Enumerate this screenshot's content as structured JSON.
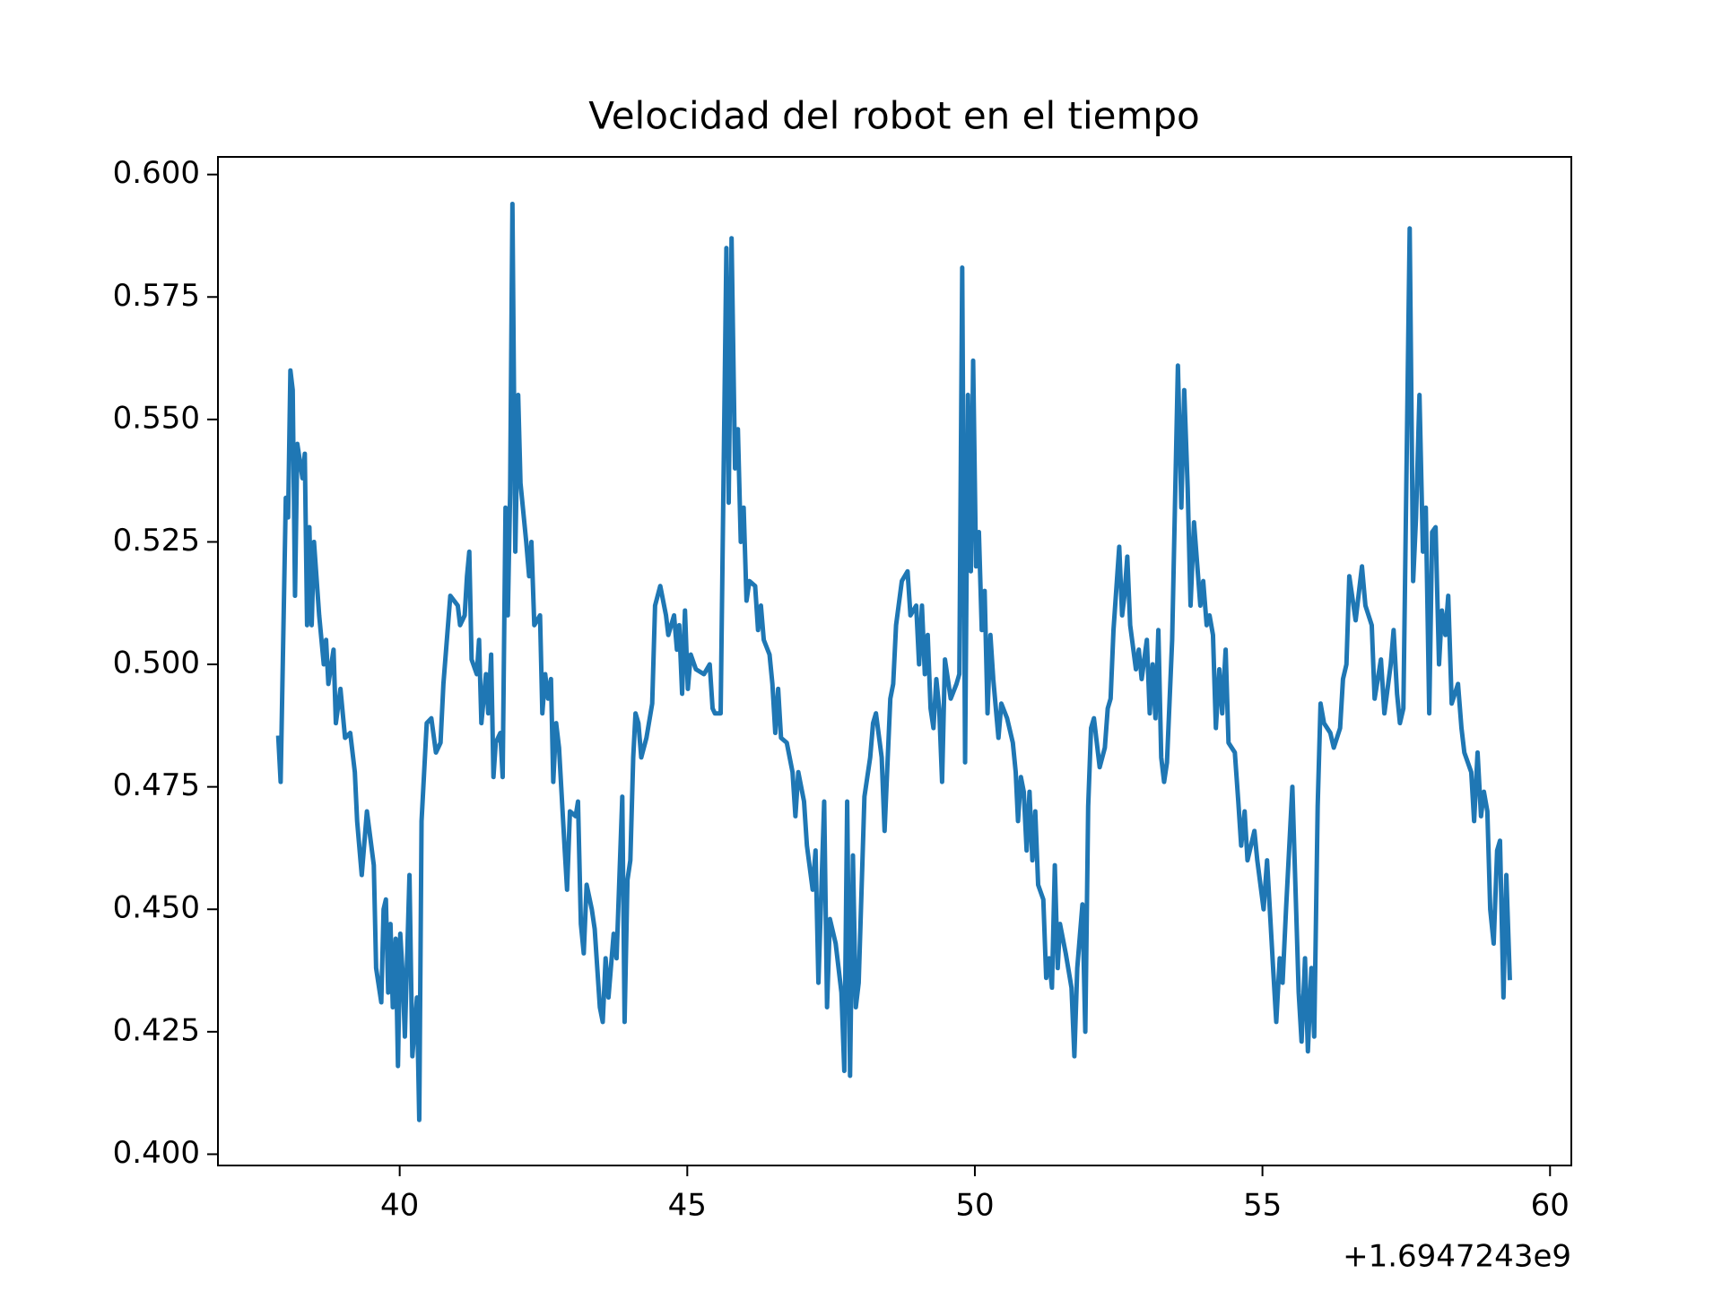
{
  "chart_data": {
    "type": "line",
    "title": "Velocidad del robot en el tiempo",
    "x_offset_label": "+1.6947243e9",
    "xlim": [
      36.84,
      60.37
    ],
    "ylim": [
      0.3977,
      0.6036
    ],
    "xticks": [
      40,
      45,
      50,
      55,
      60
    ],
    "yticks": [
      {
        "value": 0.4,
        "label": "0.400"
      },
      {
        "value": 0.425,
        "label": "0.425"
      },
      {
        "value": 0.45,
        "label": "0.450"
      },
      {
        "value": 0.475,
        "label": "0.475"
      },
      {
        "value": 0.5,
        "label": "0.500"
      },
      {
        "value": 0.525,
        "label": "0.525"
      },
      {
        "value": 0.55,
        "label": "0.550"
      },
      {
        "value": 0.575,
        "label": "0.575"
      },
      {
        "value": 0.6,
        "label": "0.600"
      }
    ],
    "grid": false,
    "series": [
      {
        "color": "#1f77b4",
        "x": [
          37.89,
          37.93,
          38.02,
          38.06,
          38.1,
          38.14,
          38.18,
          38.22,
          38.31,
          38.35,
          38.39,
          38.43,
          38.47,
          38.51,
          38.6,
          38.68,
          38.72,
          38.76,
          38.85,
          38.89,
          38.97,
          39.05,
          39.14,
          39.22,
          39.26,
          39.34,
          39.43,
          39.55,
          39.59,
          39.68,
          39.72,
          39.76,
          39.8,
          39.84,
          39.88,
          39.93,
          39.97,
          40.01,
          40.05,
          40.09,
          40.17,
          40.22,
          40.3,
          40.34,
          40.38,
          40.47,
          40.55,
          40.63,
          40.71,
          40.76,
          40.88,
          41.01,
          41.05,
          41.13,
          41.17,
          41.21,
          41.25,
          41.34,
          41.38,
          41.42,
          41.5,
          41.54,
          41.59,
          41.63,
          41.67,
          41.75,
          41.79,
          41.84,
          41.88,
          41.92,
          41.96,
          42.01,
          42.06,
          42.1,
          42.2,
          42.25,
          42.29,
          42.34,
          42.44,
          42.48,
          42.53,
          42.58,
          42.63,
          42.67,
          42.72,
          42.77,
          42.87,
          42.91,
          42.96,
          43.06,
          43.1,
          43.15,
          43.2,
          43.25,
          43.34,
          43.39,
          43.48,
          43.53,
          43.58,
          43.63,
          43.72,
          43.77,
          43.87,
          43.91,
          43.96,
          44.01,
          44.06,
          44.1,
          44.15,
          44.2,
          44.29,
          44.39,
          44.44,
          44.53,
          44.63,
          44.67,
          44.77,
          44.82,
          44.86,
          44.91,
          44.96,
          45.01,
          45.06,
          45.15,
          45.29,
          45.39,
          45.44,
          45.48,
          45.58,
          45.68,
          45.72,
          45.77,
          45.83,
          45.88,
          45.93,
          45.98,
          46.03,
          46.08,
          46.18,
          46.23,
          46.28,
          46.33,
          46.43,
          46.48,
          46.53,
          46.58,
          46.63,
          46.73,
          46.83,
          46.88,
          46.93,
          47.03,
          47.08,
          47.18,
          47.23,
          47.28,
          47.38,
          47.43,
          47.48,
          47.58,
          47.68,
          47.73,
          47.78,
          47.83,
          47.88,
          47.93,
          47.98,
          48.08,
          48.18,
          48.23,
          48.28,
          48.38,
          48.43,
          48.53,
          48.58,
          48.63,
          48.73,
          48.83,
          48.88,
          48.98,
          49.03,
          49.08,
          49.13,
          49.18,
          49.23,
          49.28,
          49.33,
          49.38,
          49.43,
          49.48,
          49.58,
          49.68,
          49.73,
          49.78,
          49.83,
          49.88,
          49.93,
          49.97,
          50.02,
          50.07,
          50.12,
          50.17,
          50.22,
          50.27,
          50.32,
          50.41,
          50.46,
          50.56,
          50.66,
          50.71,
          50.75,
          50.8,
          50.85,
          50.9,
          50.95,
          51.0,
          51.05,
          51.1,
          51.19,
          51.24,
          51.29,
          51.34,
          51.39,
          51.44,
          51.48,
          51.58,
          51.68,
          51.73,
          51.78,
          51.87,
          51.92,
          51.97,
          52.02,
          52.07,
          52.17,
          52.26,
          52.31,
          52.36,
          52.41,
          52.51,
          52.56,
          52.6,
          52.65,
          52.7,
          52.8,
          52.85,
          52.9,
          52.99,
          53.04,
          53.09,
          53.14,
          53.19,
          53.24,
          53.29,
          53.34,
          53.43,
          53.53,
          53.59,
          53.64,
          53.7,
          53.75,
          53.81,
          53.92,
          53.97,
          54.03,
          54.08,
          54.14,
          54.19,
          54.25,
          54.3,
          54.36,
          54.41,
          54.52,
          54.58,
          54.63,
          54.69,
          54.74,
          54.86,
          54.91,
          55.02,
          55.08,
          55.19,
          55.24,
          55.3,
          55.35,
          55.41,
          55.52,
          55.63,
          55.68,
          55.74,
          55.79,
          55.85,
          55.9,
          55.96,
          56.01,
          56.07,
          56.18,
          56.24,
          56.35,
          56.4,
          56.46,
          56.51,
          56.62,
          56.73,
          56.79,
          56.9,
          56.95,
          57.06,
          57.12,
          57.23,
          57.28,
          57.34,
          57.39,
          57.45,
          57.56,
          57.62,
          57.67,
          57.73,
          57.79,
          57.84,
          57.9,
          57.95,
          58.01,
          58.07,
          58.12,
          58.18,
          58.23,
          58.29,
          58.4,
          58.46,
          58.51,
          58.63,
          58.68,
          58.74,
          58.8,
          58.85,
          58.91,
          58.96,
          59.02,
          59.08,
          59.13,
          59.19,
          59.24,
          59.3
        ],
        "values": [
          0.485,
          0.476,
          0.534,
          0.53,
          0.56,
          0.556,
          0.514,
          0.545,
          0.538,
          0.543,
          0.508,
          0.528,
          0.508,
          0.525,
          0.51,
          0.5,
          0.505,
          0.496,
          0.503,
          0.488,
          0.495,
          0.485,
          0.486,
          0.478,
          0.468,
          0.457,
          0.47,
          0.459,
          0.438,
          0.431,
          0.45,
          0.452,
          0.433,
          0.447,
          0.43,
          0.444,
          0.418,
          0.445,
          0.437,
          0.424,
          0.457,
          0.42,
          0.432,
          0.407,
          0.468,
          0.488,
          0.489,
          0.482,
          0.484,
          0.496,
          0.514,
          0.512,
          0.508,
          0.51,
          0.518,
          0.523,
          0.501,
          0.498,
          0.505,
          0.488,
          0.498,
          0.49,
          0.502,
          0.477,
          0.484,
          0.486,
          0.477,
          0.532,
          0.51,
          0.535,
          0.594,
          0.523,
          0.555,
          0.537,
          0.525,
          0.518,
          0.525,
          0.508,
          0.51,
          0.49,
          0.498,
          0.493,
          0.497,
          0.476,
          0.488,
          0.483,
          0.462,
          0.454,
          0.47,
          0.469,
          0.472,
          0.447,
          0.441,
          0.455,
          0.45,
          0.446,
          0.43,
          0.427,
          0.44,
          0.432,
          0.445,
          0.44,
          0.473,
          0.427,
          0.456,
          0.46,
          0.481,
          0.49,
          0.488,
          0.481,
          0.485,
          0.492,
          0.512,
          0.516,
          0.51,
          0.506,
          0.51,
          0.503,
          0.508,
          0.494,
          0.511,
          0.495,
          0.502,
          0.499,
          0.498,
          0.5,
          0.491,
          0.49,
          0.49,
          0.585,
          0.533,
          0.587,
          0.54,
          0.548,
          0.525,
          0.532,
          0.513,
          0.517,
          0.516,
          0.507,
          0.512,
          0.505,
          0.502,
          0.496,
          0.486,
          0.495,
          0.485,
          0.484,
          0.478,
          0.469,
          0.478,
          0.472,
          0.463,
          0.454,
          0.462,
          0.435,
          0.472,
          0.43,
          0.448,
          0.443,
          0.433,
          0.417,
          0.472,
          0.416,
          0.461,
          0.43,
          0.435,
          0.473,
          0.481,
          0.488,
          0.49,
          0.481,
          0.466,
          0.493,
          0.496,
          0.508,
          0.517,
          0.519,
          0.51,
          0.512,
          0.5,
          0.512,
          0.498,
          0.506,
          0.491,
          0.487,
          0.497,
          0.491,
          0.476,
          0.501,
          0.493,
          0.496,
          0.498,
          0.581,
          0.48,
          0.555,
          0.519,
          0.562,
          0.52,
          0.527,
          0.507,
          0.515,
          0.49,
          0.506,
          0.497,
          0.485,
          0.492,
          0.489,
          0.484,
          0.478,
          0.468,
          0.477,
          0.474,
          0.462,
          0.474,
          0.46,
          0.47,
          0.455,
          0.452,
          0.436,
          0.44,
          0.434,
          0.459,
          0.438,
          0.447,
          0.441,
          0.434,
          0.42,
          0.438,
          0.451,
          0.425,
          0.471,
          0.487,
          0.489,
          0.479,
          0.483,
          0.491,
          0.493,
          0.507,
          0.524,
          0.51,
          0.514,
          0.522,
          0.508,
          0.499,
          0.503,
          0.497,
          0.505,
          0.49,
          0.5,
          0.489,
          0.507,
          0.481,
          0.476,
          0.48,
          0.505,
          0.561,
          0.532,
          0.556,
          0.536,
          0.512,
          0.529,
          0.512,
          0.517,
          0.508,
          0.51,
          0.506,
          0.487,
          0.499,
          0.49,
          0.503,
          0.484,
          0.482,
          0.472,
          0.463,
          0.47,
          0.46,
          0.466,
          0.46,
          0.45,
          0.46,
          0.437,
          0.427,
          0.44,
          0.435,
          0.45,
          0.475,
          0.433,
          0.423,
          0.44,
          0.421,
          0.438,
          0.424,
          0.471,
          0.492,
          0.488,
          0.486,
          0.483,
          0.487,
          0.497,
          0.5,
          0.518,
          0.509,
          0.52,
          0.512,
          0.508,
          0.493,
          0.501,
          0.49,
          0.5,
          0.507,
          0.494,
          0.488,
          0.491,
          0.589,
          0.517,
          0.53,
          0.555,
          0.523,
          0.532,
          0.49,
          0.527,
          0.528,
          0.5,
          0.511,
          0.506,
          0.514,
          0.492,
          0.496,
          0.487,
          0.482,
          0.478,
          0.468,
          0.482,
          0.469,
          0.474,
          0.47,
          0.45,
          0.443,
          0.462,
          0.464,
          0.432,
          0.457,
          0.436
        ]
      }
    ]
  }
}
